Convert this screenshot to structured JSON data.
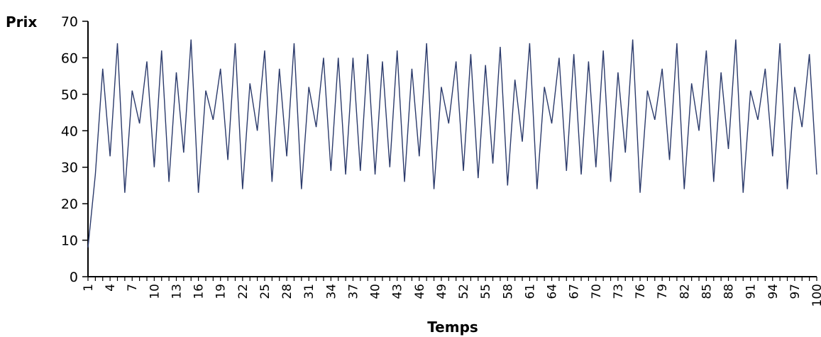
{
  "chart_data": {
    "type": "line",
    "ylabel": "Prix",
    "xlabel": "Temps",
    "ylim": [
      0,
      70
    ],
    "yticks": [
      0,
      10,
      20,
      30,
      40,
      50,
      60,
      70
    ],
    "xlim": [
      1,
      100
    ],
    "xtick_labels": [
      1,
      4,
      7,
      10,
      13,
      16,
      19,
      22,
      25,
      28,
      31,
      34,
      37,
      40,
      43,
      46,
      49,
      52,
      55,
      58,
      61,
      64,
      67,
      70,
      73,
      76,
      79,
      82,
      85,
      88,
      91,
      94,
      97,
      100
    ],
    "grid": false,
    "line_color": "#2b3a6b",
    "x": [
      1,
      2,
      3,
      4,
      5,
      6,
      7,
      8,
      9,
      10,
      11,
      12,
      13,
      14,
      15,
      16,
      17,
      18,
      19,
      20,
      21,
      22,
      23,
      24,
      25,
      26,
      27,
      28,
      29,
      30,
      31,
      32,
      33,
      34,
      35,
      36,
      37,
      38,
      39,
      40,
      41,
      42,
      43,
      44,
      45,
      46,
      47,
      48,
      49,
      50,
      51,
      52,
      53,
      54,
      55,
      56,
      57,
      58,
      59,
      60,
      61,
      62,
      63,
      64,
      65,
      66,
      67,
      68,
      69,
      70,
      71,
      72,
      73,
      74,
      75,
      76,
      77,
      78,
      79,
      80,
      81,
      82,
      83,
      84,
      85,
      86,
      87,
      88,
      89,
      90,
      91,
      92,
      93,
      94,
      95,
      96,
      97,
      98,
      99,
      100
    ],
    "values": [
      8,
      28,
      57,
      33,
      64,
      23,
      51,
      42,
      59,
      30,
      62,
      26,
      56,
      34,
      65,
      23,
      51,
      43,
      57,
      32,
      64,
      24,
      53,
      40,
      62,
      26,
      57,
      33,
      64,
      24,
      52,
      41,
      60,
      29,
      60,
      28,
      60,
      29,
      61,
      28,
      59,
      30,
      62,
      26,
      57,
      33,
      64,
      24,
      52,
      42,
      59,
      29,
      61,
      27,
      58,
      31,
      63,
      25,
      54,
      37,
      64,
      24,
      52,
      42,
      60,
      29,
      61,
      28,
      59,
      30,
      62,
      26,
      56,
      34,
      65,
      23,
      51,
      43,
      57,
      32,
      64,
      24,
      53,
      40,
      62,
      26,
      56,
      35,
      65,
      23,
      51,
      43,
      57,
      33,
      64,
      24,
      52,
      41,
      61,
      28
    ]
  }
}
